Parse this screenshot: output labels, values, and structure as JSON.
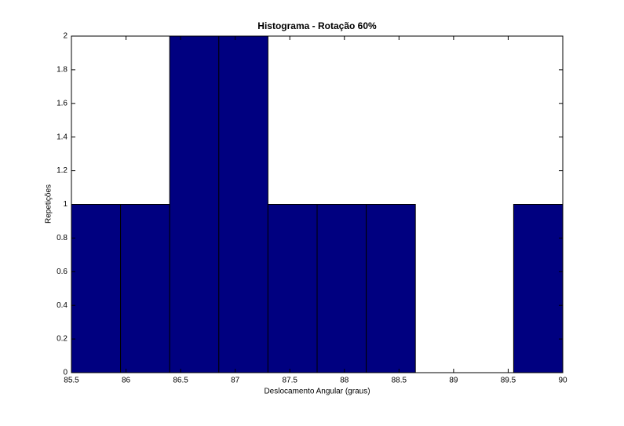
{
  "chart_data": {
    "type": "histogram",
    "title": "Histograma - Rotação 60%",
    "xlabel": "Deslocamento Angular (graus)",
    "ylabel": "Repetições",
    "bins": [
      85.5,
      85.95,
      86.4,
      86.85,
      87.3,
      87.75,
      88.2,
      88.65,
      89.1,
      89.55,
      90
    ],
    "values": [
      1,
      1,
      2,
      2,
      1,
      1,
      1,
      0,
      0,
      1
    ],
    "color": "#000080",
    "xlim": [
      85.5,
      90
    ],
    "xticks": [
      85.5,
      86,
      86.5,
      87,
      87.5,
      88,
      88.5,
      89,
      89.5,
      90
    ],
    "ylim": [
      0,
      2
    ],
    "yticks": [
      0,
      0.2,
      0.4,
      0.6,
      0.8,
      1,
      1.2,
      1.4,
      1.6,
      1.8,
      2
    ],
    "grid": false
  }
}
